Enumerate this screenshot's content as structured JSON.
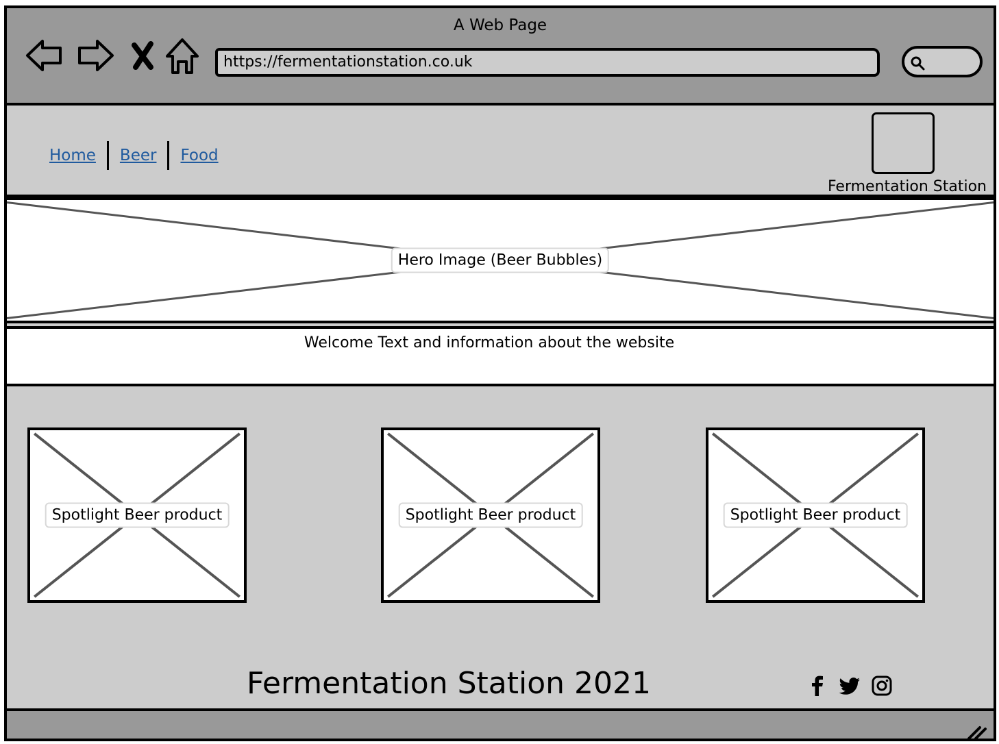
{
  "window": {
    "title": "A Web Page"
  },
  "browser": {
    "url": "https://fermentationstation.co.uk",
    "icons": [
      "back-arrow-icon",
      "forward-arrow-icon",
      "close-icon",
      "home-icon",
      "search-icon"
    ]
  },
  "site": {
    "nav": [
      {
        "label": "Home"
      },
      {
        "label": "Beer"
      },
      {
        "label": "Food"
      }
    ],
    "logo_caption": "Fermentation Station"
  },
  "hero": {
    "label": "Hero Image (Beer Bubbles)"
  },
  "welcome": {
    "text": "Welcome Text and information about the website"
  },
  "spotlight": [
    {
      "label": "Spotlight Beer product"
    },
    {
      "label": "Spotlight Beer product"
    },
    {
      "label": "Spotlight Beer product"
    }
  ],
  "footer": {
    "text": "Fermentation Station 2021",
    "social_icons": [
      "facebook-icon",
      "twitter-icon",
      "instagram-icon"
    ]
  },
  "colors": {
    "chrome": "#999999",
    "surface": "#cccccc",
    "link": "#1f5a9e",
    "placeholder_cross": "#555555"
  }
}
